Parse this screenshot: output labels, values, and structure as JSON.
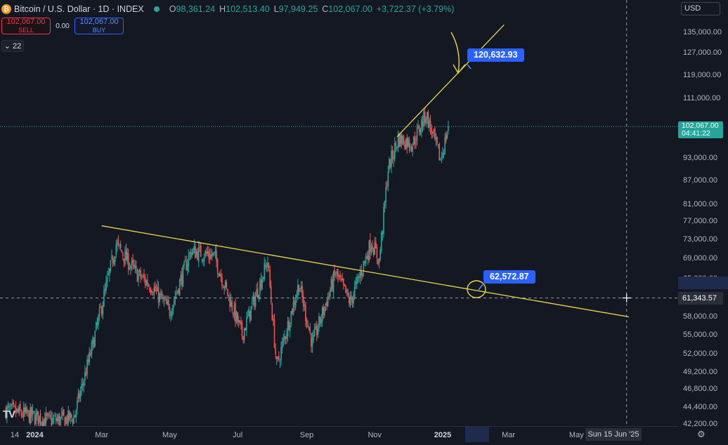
{
  "header": {
    "symbol_icon": "bitcoin-icon",
    "symbol_icon_glyph": "₿",
    "title": "Bitcoin / U.S. Dollar · 1D · INDEX",
    "ohlc": [
      {
        "key": "O",
        "value": "98,361.24"
      },
      {
        "key": "H",
        "value": "102,513.40"
      },
      {
        "key": "L",
        "value": "97,949.25"
      },
      {
        "key": "C",
        "value": "102,067.00"
      }
    ],
    "change": "+3,722.37 (+3.79%)"
  },
  "trade": {
    "sell_price": "102,067.00",
    "sell_label": "SELL",
    "spread": "0.00",
    "buy_price": "102,067.00",
    "buy_label": "BUY"
  },
  "indicators": {
    "count": "22",
    "icon": "chevron-down-icon"
  },
  "currency": "USD",
  "colors": {
    "background": "#141823",
    "up": "#26a69a",
    "down": "#ef5350",
    "trendline": "#e8d84a",
    "callout": "#2962ff"
  },
  "price_axis": {
    "labels": [
      "135,000.00",
      "127,000.00",
      "119,000.00",
      "111,000.00",
      "93,000.00",
      "87,000.00",
      "81,000.00",
      "77,000.00",
      "73,000.00",
      "69,000.00",
      "65,000.00",
      "58,000.00",
      "55,000.00",
      "52,000.00",
      "49,200.00",
      "46,800.00",
      "44,400.00",
      "42,200.00"
    ],
    "values": [
      135000,
      127000,
      119000,
      111000,
      93000,
      87000,
      81000,
      77000,
      73000,
      69000,
      65000,
      58000,
      55000,
      52000,
      49200,
      46800,
      44400,
      42200
    ],
    "current_price": "102,067.00",
    "countdown": "04:41:22",
    "crosshair_price": "61,343.57",
    "scale": "log"
  },
  "time_axis": {
    "labels": [
      {
        "text": "14",
        "bold": false,
        "date": "2023-12-14"
      },
      {
        "text": "2024",
        "bold": true,
        "date": "2024-01-01"
      },
      {
        "text": "Mar",
        "bold": false,
        "date": "2024-03-01"
      },
      {
        "text": "May",
        "bold": false,
        "date": "2024-05-01"
      },
      {
        "text": "Jul",
        "bold": false,
        "date": "2024-07-01"
      },
      {
        "text": "Sep",
        "bold": false,
        "date": "2024-09-01"
      },
      {
        "text": "Nov",
        "bold": false,
        "date": "2024-11-01"
      },
      {
        "text": "2025",
        "bold": true,
        "date": "2025-01-01"
      },
      {
        "text": "Mar",
        "bold": false,
        "date": "2025-03-01"
      },
      {
        "text": "May",
        "bold": false,
        "date": "2025-05-01"
      }
    ],
    "crosshair_date": "Sun 15 Jun '25"
  },
  "annotations": {
    "upper_target": "120,632.93",
    "lower_target": "62,572.87"
  },
  "logo": "TV",
  "settings_icon": "gear-icon",
  "chart_data": {
    "type": "candlestick",
    "title": "Bitcoin / U.S. Dollar · 1D · INDEX",
    "scale": "log",
    "x_range": [
      "2023-12-06",
      "2025-07-05"
    ],
    "y_range": [
      42000,
      140000
    ],
    "grid": false,
    "anchors": [
      {
        "date": "2023-12-06",
        "price": 44000
      },
      {
        "date": "2024-01-15",
        "price": 42600
      },
      {
        "date": "2024-02-05",
        "price": 43000
      },
      {
        "date": "2024-02-20",
        "price": 52000
      },
      {
        "date": "2024-03-14",
        "price": 72000
      },
      {
        "date": "2024-04-01",
        "price": 66000
      },
      {
        "date": "2024-04-15",
        "price": 63500
      },
      {
        "date": "2024-05-01",
        "price": 59000
      },
      {
        "date": "2024-05-20",
        "price": 70500
      },
      {
        "date": "2024-06-10",
        "price": 69500
      },
      {
        "date": "2024-07-05",
        "price": 55000
      },
      {
        "date": "2024-07-28",
        "price": 68500
      },
      {
        "date": "2024-08-05",
        "price": 50000
      },
      {
        "date": "2024-08-25",
        "price": 64000
      },
      {
        "date": "2024-09-06",
        "price": 53500
      },
      {
        "date": "2024-09-27",
        "price": 66000
      },
      {
        "date": "2024-10-10",
        "price": 60500
      },
      {
        "date": "2024-10-29",
        "price": 72500
      },
      {
        "date": "2024-11-05",
        "price": 68500
      },
      {
        "date": "2024-11-13",
        "price": 90000
      },
      {
        "date": "2024-11-22",
        "price": 98500
      },
      {
        "date": "2024-12-05",
        "price": 97000
      },
      {
        "date": "2024-12-17",
        "price": 106000
      },
      {
        "date": "2024-12-30",
        "price": 92500
      },
      {
        "date": "2025-01-03",
        "price": 97500
      },
      {
        "date": "2025-01-06",
        "price": 102067
      }
    ],
    "trendlines": [
      {
        "name": "",
        "from": {
          "date": "2024-03-01",
          "price": 76000
        },
        "to": {
          "date": "2025-06-17",
          "price": 58000
        }
      },
      {
        "name": "",
        "from": {
          "date": "2024-11-21",
          "price": 99000
        },
        "to": {
          "date": "2025-02-25",
          "price": 138000
        }
      }
    ],
    "horizontal_lines": [
      {
        "price": 102067,
        "style": "dotted",
        "color": "#26a69a"
      },
      {
        "price": 61343.57,
        "style": "dashed",
        "color": "#9598a1"
      }
    ],
    "crosshair": {
      "date": "2025-06-15",
      "price": 61343.57
    }
  }
}
